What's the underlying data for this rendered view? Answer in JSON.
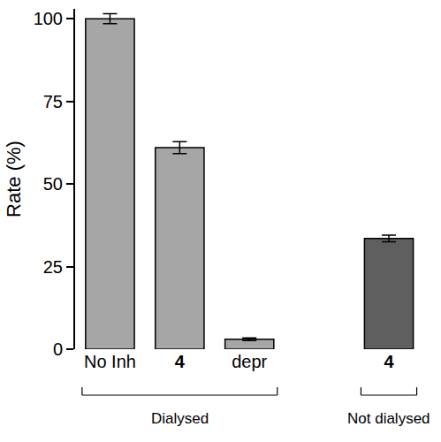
{
  "chart_data": {
    "type": "bar",
    "y_label": "Rate (%)",
    "categories": [
      "No Inh",
      "4",
      "depr",
      null,
      "4"
    ],
    "values": [
      100,
      61,
      3,
      null,
      33.5
    ],
    "errors": [
      1.5,
      1.8,
      0.4,
      null,
      1.0
    ],
    "colors": [
      "#a6a6a6",
      "#a6a6a6",
      "#a6a6a6",
      null,
      "#5f5f5f"
    ],
    "ylim": [
      0,
      103
    ],
    "yticks": [
      0,
      25,
      50,
      75,
      100
    ],
    "grid": false,
    "groups": [
      {
        "label": "Dialysed",
        "start": 0,
        "end": 2
      },
      {
        "label": "Not dialysed",
        "start": 4,
        "end": 4
      }
    ]
  }
}
